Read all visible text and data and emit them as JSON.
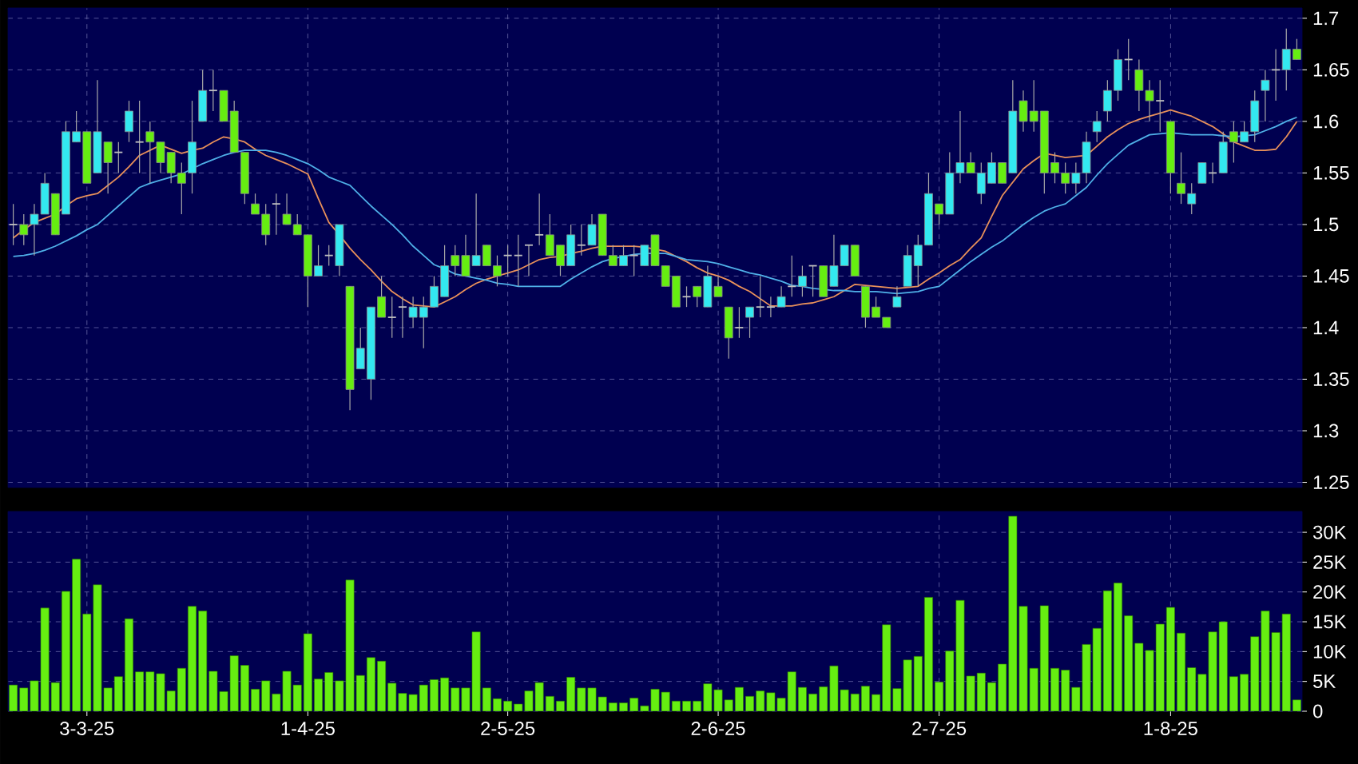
{
  "chart_data": [
    {
      "type": "candlestick",
      "categories": [
        null,
        null,
        null,
        null,
        null,
        null,
        null,
        null,
        null,
        null,
        null,
        null,
        null,
        null,
        null,
        null,
        null,
        null,
        null,
        null,
        null,
        null,
        null,
        null,
        null,
        null,
        null,
        null,
        null,
        null,
        null,
        null,
        null,
        null,
        null,
        null,
        null,
        null,
        null,
        null,
        null,
        null,
        null,
        null,
        null,
        null,
        null,
        null,
        null,
        null,
        null,
        null,
        null,
        null,
        null,
        null,
        null,
        null,
        null,
        null,
        null,
        null,
        null,
        null,
        null,
        null,
        null,
        null,
        null,
        null,
        null,
        null,
        null,
        null,
        null,
        null,
        null,
        null,
        null,
        null,
        null,
        null,
        null,
        null,
        null,
        null,
        null,
        null,
        null,
        null,
        null,
        null,
        null,
        null,
        null,
        null,
        null,
        null,
        null,
        null,
        null,
        null,
        null,
        null,
        null,
        null,
        null,
        null,
        null,
        null,
        null,
        null,
        null,
        null,
        null,
        null,
        null,
        null,
        null,
        null,
        null,
        null,
        null
      ],
      "ohlc": [
        [
          1.5,
          1.52,
          1.48,
          1.5
        ],
        [
          1.5,
          1.51,
          1.48,
          1.49
        ],
        [
          1.5,
          1.52,
          1.47,
          1.51
        ],
        [
          1.51,
          1.55,
          1.51,
          1.54
        ],
        [
          1.53,
          1.53,
          1.49,
          1.49
        ],
        [
          1.51,
          1.6,
          1.51,
          1.59
        ],
        [
          1.58,
          1.61,
          1.58,
          1.59
        ],
        [
          1.59,
          1.59,
          1.54,
          1.54
        ],
        [
          1.55,
          1.64,
          1.55,
          1.59
        ],
        [
          1.58,
          1.58,
          1.53,
          1.56
        ],
        [
          1.57,
          1.58,
          1.55,
          1.57
        ],
        [
          1.59,
          1.62,
          1.58,
          1.61
        ],
        [
          1.58,
          1.62,
          1.55,
          1.58
        ],
        [
          1.59,
          1.6,
          1.54,
          1.58
        ],
        [
          1.58,
          1.58,
          1.55,
          1.56
        ],
        [
          1.57,
          1.57,
          1.54,
          1.55
        ],
        [
          1.55,
          1.56,
          1.51,
          1.54
        ],
        [
          1.55,
          1.62,
          1.53,
          1.58
        ],
        [
          1.6,
          1.65,
          1.6,
          1.63
        ],
        [
          1.63,
          1.65,
          1.61,
          1.63
        ],
        [
          1.63,
          1.63,
          1.6,
          1.6
        ],
        [
          1.61,
          1.62,
          1.57,
          1.57
        ],
        [
          1.57,
          1.57,
          1.52,
          1.53
        ],
        [
          1.52,
          1.53,
          1.51,
          1.51
        ],
        [
          1.51,
          1.52,
          1.48,
          1.49
        ],
        [
          1.52,
          1.53,
          1.49,
          1.52
        ],
        [
          1.51,
          1.53,
          1.5,
          1.5
        ],
        [
          1.5,
          1.51,
          1.49,
          1.49
        ],
        [
          1.49,
          1.49,
          1.42,
          1.45
        ],
        [
          1.45,
          1.48,
          1.45,
          1.46
        ],
        [
          1.47,
          1.48,
          1.46,
          1.47
        ],
        [
          1.46,
          1.5,
          1.45,
          1.5
        ],
        [
          1.44,
          1.44,
          1.32,
          1.34
        ],
        [
          1.36,
          1.4,
          1.36,
          1.38
        ],
        [
          1.35,
          1.42,
          1.33,
          1.42
        ],
        [
          1.43,
          1.45,
          1.41,
          1.41
        ],
        [
          1.41,
          1.43,
          1.39,
          1.41
        ],
        [
          1.42,
          1.43,
          1.39,
          1.42
        ],
        [
          1.41,
          1.43,
          1.4,
          1.42
        ],
        [
          1.41,
          1.43,
          1.38,
          1.42
        ],
        [
          1.42,
          1.45,
          1.42,
          1.44
        ],
        [
          1.43,
          1.48,
          1.43,
          1.46
        ],
        [
          1.47,
          1.48,
          1.45,
          1.46
        ],
        [
          1.47,
          1.49,
          1.45,
          1.45
        ],
        [
          1.46,
          1.53,
          1.46,
          1.47
        ],
        [
          1.48,
          1.48,
          1.46,
          1.46
        ],
        [
          1.46,
          1.47,
          1.44,
          1.45
        ],
        [
          1.47,
          1.48,
          1.45,
          1.47
        ],
        [
          1.47,
          1.49,
          1.44,
          1.47
        ],
        [
          1.48,
          1.48,
          1.45,
          1.48
        ],
        [
          1.49,
          1.53,
          1.48,
          1.49
        ],
        [
          1.49,
          1.51,
          1.47,
          1.47
        ],
        [
          1.48,
          1.48,
          1.45,
          1.46
        ],
        [
          1.46,
          1.5,
          1.46,
          1.49
        ],
        [
          1.48,
          1.5,
          1.47,
          1.48
        ],
        [
          1.48,
          1.51,
          1.48,
          1.5
        ],
        [
          1.51,
          1.51,
          1.47,
          1.47
        ],
        [
          1.47,
          1.48,
          1.46,
          1.46
        ],
        [
          1.46,
          1.48,
          1.46,
          1.47
        ],
        [
          1.47,
          1.48,
          1.45,
          1.47
        ],
        [
          1.46,
          1.48,
          1.46,
          1.48
        ],
        [
          1.49,
          1.49,
          1.46,
          1.46
        ],
        [
          1.46,
          1.46,
          1.44,
          1.44
        ],
        [
          1.45,
          1.45,
          1.42,
          1.42
        ],
        [
          1.43,
          1.44,
          1.42,
          1.43
        ],
        [
          1.44,
          1.44,
          1.42,
          1.43
        ],
        [
          1.42,
          1.46,
          1.42,
          1.45
        ],
        [
          1.44,
          1.45,
          1.43,
          1.43
        ],
        [
          1.42,
          1.42,
          1.37,
          1.39
        ],
        [
          1.4,
          1.42,
          1.39,
          1.4
        ],
        [
          1.41,
          1.42,
          1.39,
          1.42
        ],
        [
          1.42,
          1.45,
          1.41,
          1.42
        ],
        [
          1.42,
          1.43,
          1.41,
          1.42
        ],
        [
          1.42,
          1.44,
          1.42,
          1.43
        ],
        [
          1.44,
          1.47,
          1.43,
          1.44
        ],
        [
          1.44,
          1.46,
          1.43,
          1.45
        ],
        [
          1.46,
          1.46,
          1.43,
          1.46
        ],
        [
          1.46,
          1.46,
          1.43,
          1.43
        ],
        [
          1.44,
          1.49,
          1.44,
          1.46
        ],
        [
          1.46,
          1.48,
          1.46,
          1.48
        ],
        [
          1.48,
          1.48,
          1.45,
          1.45
        ],
        [
          1.44,
          1.44,
          1.4,
          1.41
        ],
        [
          1.42,
          1.43,
          1.41,
          1.41
        ],
        [
          1.41,
          1.41,
          1.4,
          1.4
        ],
        [
          1.42,
          1.44,
          1.42,
          1.43
        ],
        [
          1.44,
          1.48,
          1.44,
          1.47
        ],
        [
          1.46,
          1.49,
          1.44,
          1.48
        ],
        [
          1.48,
          1.55,
          1.48,
          1.53
        ],
        [
          1.52,
          1.52,
          1.5,
          1.51
        ],
        [
          1.51,
          1.57,
          1.51,
          1.55
        ],
        [
          1.55,
          1.61,
          1.54,
          1.56
        ],
        [
          1.56,
          1.57,
          1.55,
          1.55
        ],
        [
          1.53,
          1.56,
          1.52,
          1.55
        ],
        [
          1.54,
          1.57,
          1.54,
          1.56
        ],
        [
          1.56,
          1.56,
          1.54,
          1.54
        ],
        [
          1.55,
          1.64,
          1.55,
          1.61
        ],
        [
          1.62,
          1.63,
          1.59,
          1.6
        ],
        [
          1.61,
          1.64,
          1.59,
          1.6
        ],
        [
          1.61,
          1.61,
          1.53,
          1.55
        ],
        [
          1.56,
          1.57,
          1.54,
          1.55
        ],
        [
          1.55,
          1.56,
          1.53,
          1.54
        ],
        [
          1.54,
          1.56,
          1.53,
          1.55
        ],
        [
          1.55,
          1.59,
          1.54,
          1.58
        ],
        [
          1.59,
          1.61,
          1.58,
          1.6
        ],
        [
          1.61,
          1.64,
          1.6,
          1.63
        ],
        [
          1.63,
          1.67,
          1.62,
          1.66
        ],
        [
          1.66,
          1.68,
          1.64,
          1.66
        ],
        [
          1.65,
          1.66,
          1.61,
          1.63
        ],
        [
          1.63,
          1.64,
          1.6,
          1.62
        ],
        [
          1.62,
          1.64,
          1.59,
          1.62
        ],
        [
          1.6,
          1.6,
          1.53,
          1.55
        ],
        [
          1.54,
          1.57,
          1.52,
          1.53
        ],
        [
          1.52,
          1.54,
          1.51,
          1.53
        ],
        [
          1.54,
          1.56,
          1.54,
          1.56
        ],
        [
          1.55,
          1.56,
          1.54,
          1.55
        ],
        [
          1.55,
          1.59,
          1.55,
          1.58
        ],
        [
          1.59,
          1.6,
          1.56,
          1.58
        ],
        [
          1.58,
          1.6,
          1.58,
          1.59
        ],
        [
          1.59,
          1.63,
          1.58,
          1.62
        ],
        [
          1.63,
          1.65,
          1.6,
          1.64
        ],
        [
          1.65,
          1.67,
          1.62,
          1.65
        ],
        [
          1.65,
          1.69,
          1.63,
          1.67
        ],
        [
          1.67,
          1.68,
          1.66,
          1.66
        ]
      ],
      "colors": [
        "#c0c0c0",
        "#66ee11",
        "#33e8f0",
        "#33e8f0",
        "#66ee11",
        "#33e8f0",
        "#33e8f0",
        "#66ee11",
        "#33e8f0",
        "#66ee11",
        "#c0c0c0",
        "#33e8f0",
        "#c0c0c0",
        "#66ee11",
        "#66ee11",
        "#66ee11",
        "#66ee11",
        "#33e8f0",
        "#33e8f0",
        "#c0c0c0",
        "#66ee11",
        "#66ee11",
        "#66ee11",
        "#66ee11",
        "#66ee11",
        "#c0c0c0",
        "#66ee11",
        "#66ee11",
        "#66ee11",
        "#33e8f0",
        "#c0c0c0",
        "#33e8f0",
        "#66ee11",
        "#33e8f0",
        "#33e8f0",
        "#66ee11",
        "#c0c0c0",
        "#c0c0c0",
        "#33e8f0",
        "#33e8f0",
        "#33e8f0",
        "#33e8f0",
        "#66ee11",
        "#66ee11",
        "#33e8f0",
        "#66ee11",
        "#66ee11",
        "#c0c0c0",
        "#c0c0c0",
        "#c0c0c0",
        "#c0c0c0",
        "#66ee11",
        "#66ee11",
        "#33e8f0",
        "#c0c0c0",
        "#33e8f0",
        "#66ee11",
        "#66ee11",
        "#33e8f0",
        "#c0c0c0",
        "#33e8f0",
        "#66ee11",
        "#66ee11",
        "#66ee11",
        "#c0c0c0",
        "#66ee11",
        "#33e8f0",
        "#66ee11",
        "#66ee11",
        "#c0c0c0",
        "#33e8f0",
        "#c0c0c0",
        "#c0c0c0",
        "#33e8f0",
        "#c0c0c0",
        "#33e8f0",
        "#c0c0c0",
        "#66ee11",
        "#33e8f0",
        "#33e8f0",
        "#66ee11",
        "#66ee11",
        "#66ee11",
        "#66ee11",
        "#33e8f0",
        "#33e8f0",
        "#33e8f0",
        "#33e8f0",
        "#66ee11",
        "#33e8f0",
        "#33e8f0",
        "#66ee11",
        "#33e8f0",
        "#33e8f0",
        "#66ee11",
        "#33e8f0",
        "#66ee11",
        "#66ee11",
        "#66ee11",
        "#66ee11",
        "#66ee11",
        "#33e8f0",
        "#33e8f0",
        "#33e8f0",
        "#33e8f0",
        "#33e8f0",
        "#c0c0c0",
        "#66ee11",
        "#66ee11",
        "#c0c0c0",
        "#66ee11",
        "#66ee11",
        "#33e8f0",
        "#33e8f0",
        "#c0c0c0",
        "#33e8f0",
        "#66ee11",
        "#33e8f0",
        "#33e8f0",
        "#33e8f0",
        "#c0c0c0",
        "#33e8f0",
        "#66ee11"
      ],
      "series": [
        {
          "type": "line",
          "color": "#e8905a",
          "values": [
            1.487,
            1.495,
            1.502,
            1.506,
            1.51,
            1.518,
            1.525,
            1.528,
            1.53,
            1.538,
            1.546,
            1.556,
            1.567,
            1.572,
            1.577,
            1.573,
            1.569,
            1.572,
            1.574,
            1.58,
            1.585,
            1.583,
            1.58,
            1.573,
            1.567,
            1.563,
            1.559,
            1.554,
            1.549,
            1.525,
            1.502,
            1.49,
            1.477,
            1.466,
            1.456,
            1.445,
            1.435,
            1.428,
            1.422,
            1.421,
            1.42,
            1.425,
            1.43,
            1.437,
            1.443,
            1.447,
            1.45,
            1.453,
            1.456,
            1.461,
            1.466,
            1.468,
            1.469,
            1.472,
            1.474,
            1.477,
            1.479,
            1.479,
            1.479,
            1.479,
            1.478,
            1.476,
            1.474,
            1.469,
            1.464,
            1.458,
            1.453,
            1.45,
            1.446,
            1.44,
            1.435,
            1.428,
            1.421,
            1.421,
            1.421,
            1.423,
            1.424,
            1.427,
            1.43,
            1.436,
            1.442,
            1.441,
            1.44,
            1.439,
            1.438,
            1.439,
            1.44,
            1.447,
            1.453,
            1.46,
            1.466,
            1.477,
            1.487,
            1.508,
            1.528,
            1.541,
            1.554,
            1.562,
            1.569,
            1.567,
            1.565,
            1.566,
            1.567,
            1.576,
            1.585,
            1.592,
            1.598,
            1.602,
            1.605,
            1.608,
            1.611,
            1.608,
            1.605,
            1.6,
            1.595,
            1.588,
            1.58,
            1.576,
            1.572,
            1.572,
            1.573,
            1.585,
            1.6
          ]
        },
        {
          "type": "line",
          "color": "#4fb0e8",
          "values": [
            1.469,
            1.47,
            1.472,
            1.475,
            1.479,
            1.484,
            1.489,
            1.495,
            1.5,
            1.509,
            1.518,
            1.527,
            1.536,
            1.54,
            1.543,
            1.546,
            1.549,
            1.554,
            1.559,
            1.563,
            1.567,
            1.57,
            1.572,
            1.572,
            1.572,
            1.57,
            1.567,
            1.563,
            1.559,
            1.553,
            1.546,
            1.542,
            1.538,
            1.528,
            1.518,
            1.509,
            1.5,
            1.49,
            1.479,
            1.47,
            1.461,
            1.457,
            1.452,
            1.45,
            1.448,
            1.446,
            1.443,
            1.442,
            1.44,
            1.44,
            1.44,
            1.44,
            1.44,
            1.447,
            1.453,
            1.459,
            1.464,
            1.467,
            1.469,
            1.471,
            1.472,
            1.472,
            1.472,
            1.469,
            1.466,
            1.465,
            1.464,
            1.462,
            1.459,
            1.456,
            1.453,
            1.451,
            1.448,
            1.445,
            1.441,
            1.44,
            1.438,
            1.437,
            1.436,
            1.436,
            1.435,
            1.435,
            1.435,
            1.434,
            1.433,
            1.434,
            1.435,
            1.438,
            1.44,
            1.448,
            1.456,
            1.464,
            1.471,
            1.478,
            1.484,
            1.492,
            1.5,
            1.507,
            1.513,
            1.517,
            1.52,
            1.528,
            1.536,
            1.548,
            1.559,
            1.568,
            1.577,
            1.582,
            1.587,
            1.588,
            1.589,
            1.588,
            1.587,
            1.587,
            1.587,
            1.586,
            1.585,
            1.586,
            1.587,
            1.591,
            1.595,
            1.6,
            1.604
          ]
        }
      ],
      "ylim": [
        1.245,
        1.71
      ],
      "yticks": [
        1.25,
        1.3,
        1.35,
        1.4,
        1.45,
        1.5,
        1.55,
        1.6,
        1.65,
        1.7
      ],
      "grid": true,
      "tick_labels": "y"
    },
    {
      "type": "bar",
      "categories": [
        null,
        null,
        null,
        null,
        null,
        null,
        null,
        "3-3-25",
        null,
        null,
        null,
        null,
        null,
        null,
        null,
        null,
        null,
        null,
        null,
        null,
        null,
        null,
        null,
        null,
        null,
        null,
        null,
        null,
        "1-4-25",
        null,
        null,
        null,
        null,
        null,
        null,
        null,
        null,
        null,
        null,
        null,
        null,
        null,
        null,
        null,
        null,
        null,
        null,
        "2-5-25",
        null,
        null,
        null,
        null,
        null,
        null,
        null,
        null,
        null,
        null,
        null,
        null,
        null,
        null,
        null,
        null,
        null,
        null,
        null,
        "2-6-25",
        null,
        null,
        null,
        null,
        null,
        null,
        null,
        null,
        null,
        null,
        null,
        null,
        null,
        null,
        null,
        null,
        null,
        null,
        null,
        null,
        "2-7-25",
        null,
        null,
        null,
        null,
        null,
        null,
        null,
        null,
        null,
        null,
        null,
        null,
        null,
        null,
        null,
        null,
        null,
        null,
        null,
        null,
        null,
        "1-8-25",
        null,
        null,
        null,
        null,
        null,
        null,
        null,
        null,
        null,
        null,
        null,
        null
      ],
      "values": [
        4.4,
        3.9,
        5.1,
        17.3,
        4.8,
        20.1,
        25.5,
        16.3,
        21.2,
        3.9,
        5.8,
        15.5,
        6.6,
        6.6,
        6.3,
        3.4,
        7.2,
        17.6,
        16.8,
        6.7,
        3.3,
        9.3,
        7.7,
        3.7,
        5.1,
        2.9,
        6.7,
        4.4,
        13.0,
        5.4,
        6.5,
        5.1,
        22.0,
        6.0,
        9.0,
        8.4,
        4.7,
        3.0,
        2.8,
        4.4,
        5.3,
        5.6,
        3.9,
        3.9,
        13.3,
        3.9,
        2.1,
        1.7,
        1.2,
        3.4,
        4.8,
        2.5,
        1.7,
        5.7,
        3.9,
        3.9,
        2.4,
        1.4,
        1.4,
        2.2,
        0.9,
        3.7,
        3.2,
        1.7,
        1.7,
        1.7,
        4.6,
        3.6,
        1.9,
        4.0,
        2.5,
        3.4,
        3.1,
        2.2,
        6.6,
        4.0,
        2.9,
        4.1,
        7.6,
        3.6,
        2.9,
        4.2,
        2.8,
        14.5,
        3.8,
        8.6,
        9.2,
        19.1,
        4.9,
        10.1,
        18.6,
        5.9,
        6.4,
        4.8,
        7.9,
        32.7,
        17.6,
        7.2,
        17.7,
        7.2,
        6.9,
        4.0,
        11.2,
        13.9,
        20.2,
        21.5,
        16.0,
        11.4,
        10.2,
        14.6,
        17.4,
        13.1,
        7.3,
        6.2,
        13.3,
        15.0,
        5.8,
        6.2,
        12.5,
        16.8,
        13.2,
        16.3,
        1.9
      ],
      "color": "#66ee11",
      "ylim": [
        0,
        33.5
      ],
      "yticks": [
        0,
        {
          "value": 5,
          "label": "5K"
        },
        {
          "value": 10,
          "label": "10K"
        },
        {
          "value": 15,
          "label": "15K"
        },
        {
          "value": 20,
          "label": "20K"
        },
        {
          "value": 25,
          "label": "25K"
        },
        {
          "value": 30,
          "label": "30K"
        }
      ],
      "grid": true
    }
  ]
}
